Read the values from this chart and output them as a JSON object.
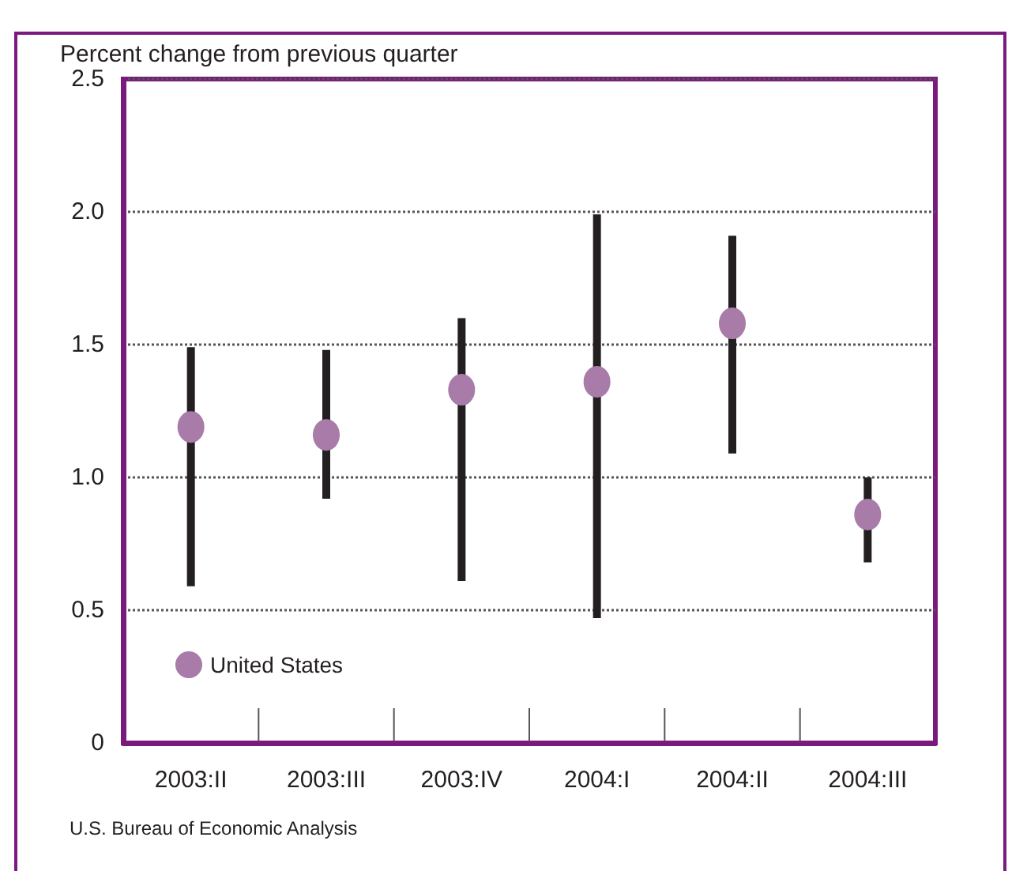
{
  "chart_data": {
    "type": "scatter",
    "ylabel": "Percent change from previous quarter",
    "categories": [
      "2003:II",
      "2003:III",
      "2003:IV",
      "2004:I",
      "2004:II",
      "2004:III"
    ],
    "series": [
      {
        "name": "United States",
        "color": "#a87ba9",
        "values": [
          1.19,
          1.16,
          1.33,
          1.36,
          1.58,
          0.86
        ],
        "errors": [
          [
            0.59,
            1.49
          ],
          [
            0.92,
            1.48
          ],
          [
            0.61,
            1.6
          ],
          [
            0.47,
            1.99
          ],
          [
            1.09,
            1.91
          ],
          [
            0.68,
            1.0
          ]
        ]
      }
    ],
    "ylim": [
      0,
      2.5
    ],
    "yticks": [
      0,
      0.5,
      {
        "value": 1,
        "label": "1.0"
      },
      1.5,
      {
        "value": 2,
        "label": "2.0"
      },
      2.5
    ],
    "grid": "y",
    "legend": "bottom left",
    "marker": "circle",
    "annotations": [
      "U.S. Bureau of Economic Analysis"
    ]
  }
}
